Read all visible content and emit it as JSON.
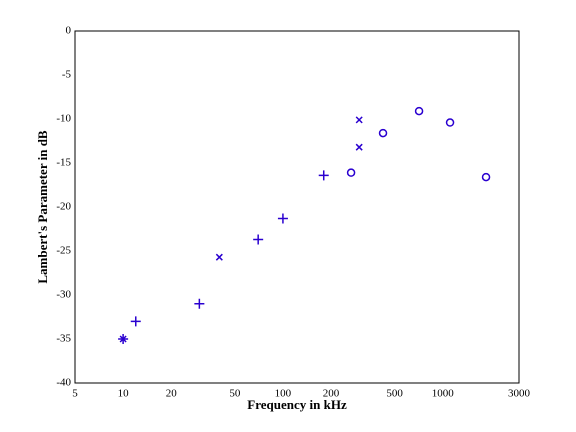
{
  "chart_data": {
    "type": "scatter",
    "xlabel": "Frequency in kHz",
    "ylabel": "Lambert's Parameter in dB",
    "xscale": "log",
    "grid": true,
    "xlim": [
      5,
      3000
    ],
    "xticks": [
      5,
      10,
      20,
      50,
      100,
      200,
      500,
      1000,
      3000
    ],
    "ylim": [
      -40,
      0
    ],
    "yticks": [
      0,
      -5,
      -10,
      -15,
      -20,
      -25,
      -30,
      -35,
      -40
    ],
    "series": [
      {
        "marker": "plus",
        "color": "#2a00d0",
        "x": [
          10,
          12,
          30,
          70,
          100,
          180
        ],
        "values": [
          -35,
          -33,
          -31,
          -23.7,
          -21.3,
          -16.4
        ]
      },
      {
        "marker": "x",
        "color": "#2a00d0",
        "x": [
          10,
          40,
          300,
          300
        ],
        "values": [
          -35,
          -25.7,
          -10.1,
          -13.2
        ]
      },
      {
        "marker": "circle",
        "color": "#2a00d0",
        "x": [
          267,
          423,
          711,
          1111,
          1866
        ],
        "values": [
          -16.1,
          -11.6,
          -9.1,
          -10.4,
          -16.6
        ]
      }
    ]
  }
}
